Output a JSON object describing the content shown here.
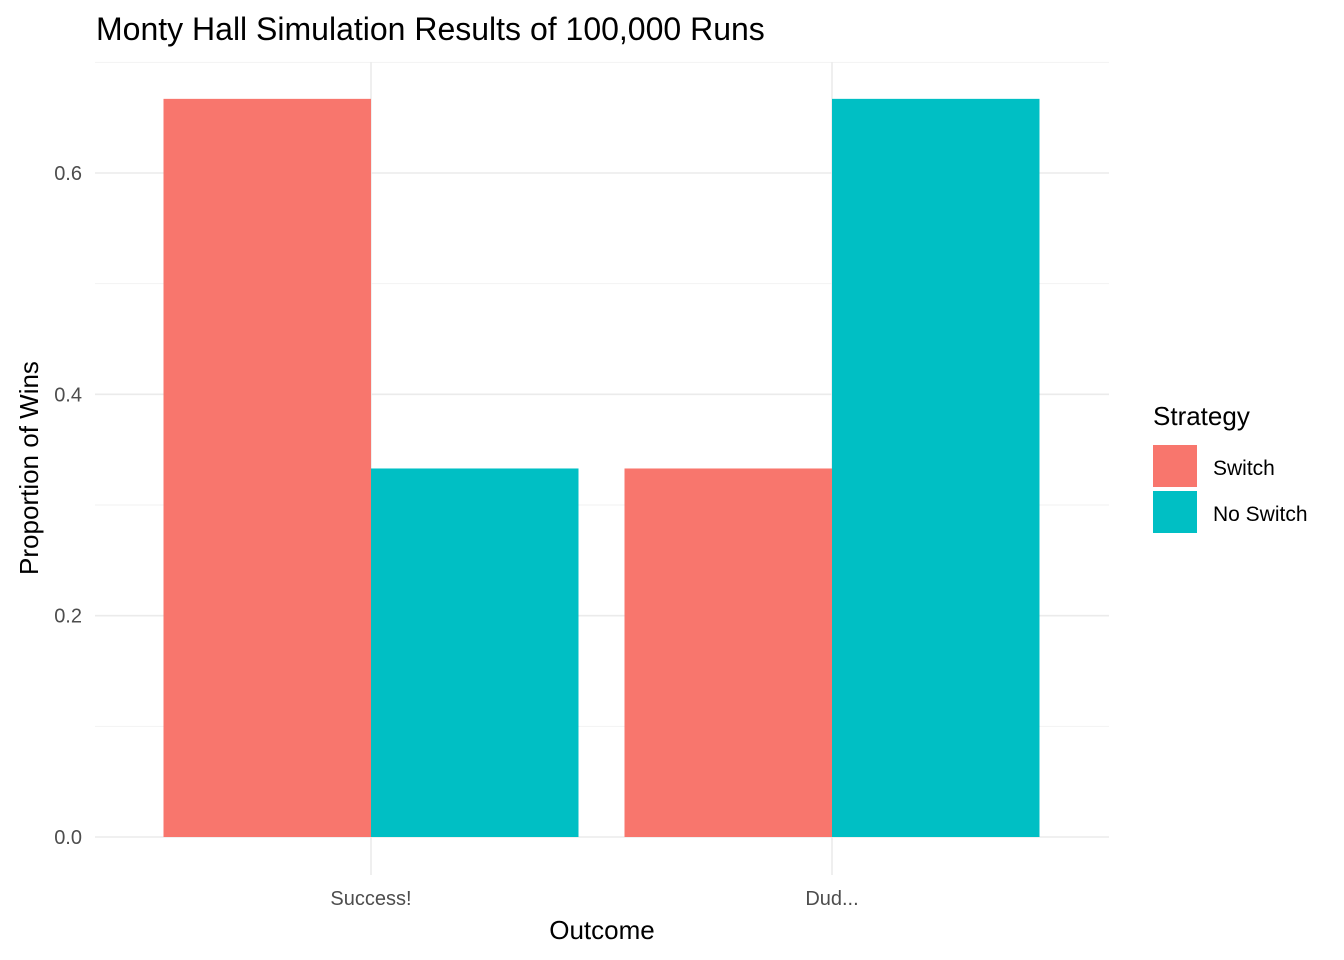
{
  "chart_data": {
    "type": "bar",
    "title": "Monty Hall Simulation Results of 100,000 Runs",
    "xlabel": "Outcome",
    "ylabel": "Proportion of Wins",
    "categories": [
      "Success!",
      "Dud..."
    ],
    "series": [
      {
        "name": "Switch",
        "color": "#F8766D",
        "values": [
          0.667,
          0.333
        ]
      },
      {
        "name": "No Switch",
        "color": "#00BFC4",
        "values": [
          0.333,
          0.667
        ]
      }
    ],
    "ylim": [
      0,
      0.7
    ],
    "yticks": [
      0.0,
      0.2,
      0.4,
      0.6
    ],
    "ytick_labels": [
      "0.0",
      "0.2",
      "0.4",
      "0.6"
    ],
    "grid": true,
    "legend": {
      "title": "Strategy",
      "position": "right"
    }
  }
}
